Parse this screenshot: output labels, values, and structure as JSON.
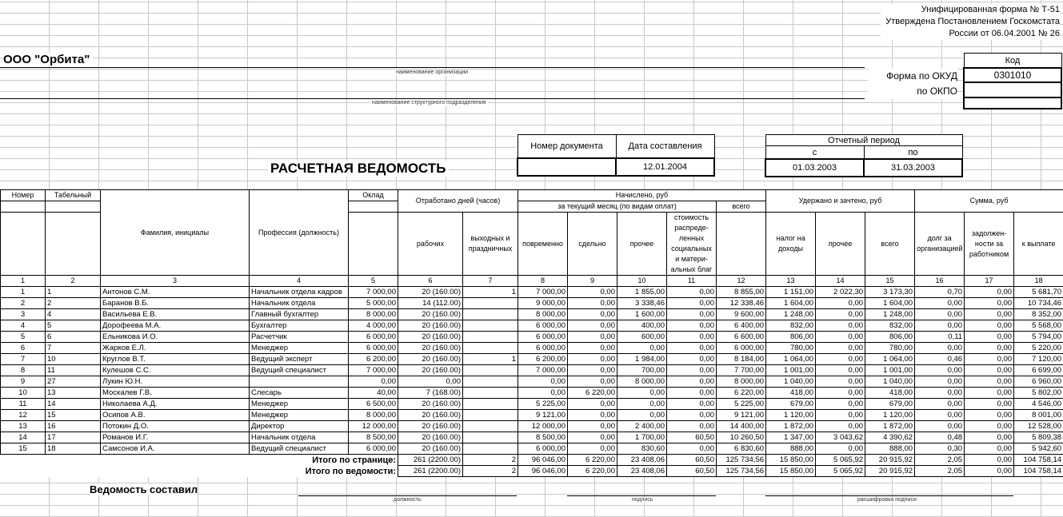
{
  "form_info": [
    "Унифицированная форма № Т-51",
    "Утверждена Постановлением Госкомстата",
    "России от 06.04.2001 № 26"
  ],
  "organization": {
    "name": "ООО \"Орбита\"",
    "name_caption": "наименование организации",
    "division_caption": "наименование структурного подразделения"
  },
  "codes": {
    "header": "Код",
    "okud_label": "Форма по ОКУД",
    "okud_value": "0301010",
    "okpo_label": "по ОКПО",
    "okpo_value": ""
  },
  "document": {
    "title": "РАСЧЕТНАЯ ВЕДОМОСТЬ",
    "number_label": "Номер документа",
    "number_value": "",
    "date_label": "Дата составления",
    "date_value": "12.01.2004",
    "period_label": "Отчетный период",
    "from_label": "с",
    "to_label": "по",
    "from_value": "01.03.2003",
    "to_value": "31.03.2003"
  },
  "table": {
    "headers": {
      "num": "Номер",
      "tab": "Табельный",
      "name": "Фамилия, инициалы",
      "prof": "Профессия (должность)",
      "salary": "Оклад",
      "worked": "Отработано дней (часов)",
      "accrued": "Начислено, руб",
      "current_month": "за текущий месяц (по видам оплат)",
      "accrued_total": "всего",
      "withheld": "Удержано и зачтено, руб",
      "sum": "Сумма, руб",
      "work_days": "рабочих",
      "holidays": "выходных и праздничных",
      "time_based": "повременно",
      "piece": "сдельно",
      "other": "прочее",
      "social": "стоимость распреде-ленных социальных и матери-альных благ",
      "tax": "налог на доходы",
      "w_other": "прочее",
      "w_total": "всего",
      "org_debt": "долг за организацией",
      "emp_debt": "задолжен-ности за работником",
      "to_pay": "к выплате"
    },
    "col_numbers": [
      "1",
      "2",
      "3",
      "4",
      "5",
      "6",
      "7",
      "8",
      "9",
      "10",
      "11",
      "12",
      "13",
      "14",
      "15",
      "16",
      "17",
      "18"
    ],
    "rows": [
      [
        "1",
        "1",
        "Антонов С.М.",
        "Начальник отдела кадров",
        "7 000,00",
        "20 (160.00)",
        "1",
        "7 000,00",
        "0,00",
        "1 855,00",
        "0,00",
        "8 855,00",
        "1 151,00",
        "2 022,30",
        "3 173,30",
        "0,70",
        "0,00",
        "5 681,70"
      ],
      [
        "2",
        "2",
        "Баранов В.Б.",
        "Начальник отдела",
        "5 000,00",
        "14 (112.00)",
        "",
        "9 000,00",
        "0,00",
        "3 338,46",
        "0,00",
        "12 338,46",
        "1 604,00",
        "0,00",
        "1 604,00",
        "0,00",
        "0,00",
        "10 734,46"
      ],
      [
        "3",
        "4",
        "Васильева Е.В.",
        "Главный бухгалтер",
        "8 000,00",
        "20 (160.00)",
        "",
        "8 000,00",
        "0,00",
        "1 600,00",
        "0,00",
        "9 600,00",
        "1 248,00",
        "0,00",
        "1 248,00",
        "0,00",
        "0,00",
        "8 352,00"
      ],
      [
        "4",
        "5",
        "Дорофеева М.А.",
        "Бухгалтер",
        "4 000,00",
        "20 (160.00)",
        "",
        "6 000,00",
        "0,00",
        "400,00",
        "0,00",
        "6 400,00",
        "832,00",
        "0,00",
        "832,00",
        "0,00",
        "0,00",
        "5 568,00"
      ],
      [
        "5",
        "6",
        "Ельникова И.О.",
        "Расчетчик",
        "6 000,00",
        "20 (160.00)",
        "",
        "6 000,00",
        "0,00",
        "600,00",
        "0,00",
        "6 600,00",
        "806,00",
        "0,00",
        "806,00",
        "0,11",
        "0,00",
        "5 794,00"
      ],
      [
        "6",
        "7",
        "Жарков Е.Л.",
        "Менеджер",
        "6 000,00",
        "20 (160.00)",
        "",
        "6 000,00",
        "0,00",
        "0,00",
        "0,00",
        "6 000,00",
        "780,00",
        "0,00",
        "780,00",
        "0,00",
        "0,00",
        "5 220,00"
      ],
      [
        "7",
        "10",
        "Круглов В.Т.",
        "Ведущий эксперт",
        "6 200,00",
        "20 (160.00)",
        "1",
        "6 200,00",
        "0,00",
        "1 984,00",
        "0,00",
        "8 184,00",
        "1 064,00",
        "0,00",
        "1 064,00",
        "0,46",
        "0,00",
        "7 120,00"
      ],
      [
        "8",
        "11",
        "Кулешов С.С.",
        "Ведущий специалист",
        "7 000,00",
        "20 (160.00)",
        "",
        "7 000,00",
        "0,00",
        "700,00",
        "0,00",
        "7 700,00",
        "1 001,00",
        "0,00",
        "1 001,00",
        "0,00",
        "0,00",
        "6 699,00"
      ],
      [
        "9",
        "27",
        "Лукин Ю.Н.",
        "",
        "0,00",
        "0,00",
        "",
        "0,00",
        "0,00",
        "8 000,00",
        "0,00",
        "8 000,00",
        "1 040,00",
        "0,00",
        "1 040,00",
        "0,00",
        "0,00",
        "6 960,00"
      ],
      [
        "10",
        "13",
        "Москалев Г.В.",
        "Слесарь",
        "40,00",
        "7 (168.00)",
        "",
        "0,00",
        "6 220,00",
        "0,00",
        "0,00",
        "6 220,00",
        "418,00",
        "0,00",
        "418,00",
        "0,00",
        "0,00",
        "5 802,00"
      ],
      [
        "11",
        "14",
        "Николаева А.Д.",
        "Менеджер",
        "6 500,00",
        "20 (160.00)",
        "",
        "5 225,00",
        "0,00",
        "0,00",
        "0,00",
        "5 225,00",
        "679,00",
        "0,00",
        "679,00",
        "0,00",
        "0,00",
        "4 546,00"
      ],
      [
        "12",
        "15",
        "Осипов А.В.",
        "Менеджер",
        "8 000,00",
        "20 (160.00)",
        "",
        "9 121,00",
        "0,00",
        "0,00",
        "0,00",
        "9 121,00",
        "1 120,00",
        "0,00",
        "1 120,00",
        "0,00",
        "0,00",
        "8 001,00"
      ],
      [
        "13",
        "16",
        "Потокин Д.О.",
        "Директор",
        "12 000,00",
        "20 (160.00)",
        "",
        "12 000,00",
        "0,00",
        "2 400,00",
        "0,00",
        "14 400,00",
        "1 872,00",
        "0,00",
        "1 872,00",
        "0,00",
        "0,00",
        "12 528,00"
      ],
      [
        "14",
        "17",
        "Романов И.Г.",
        "Начальник отдела",
        "8 500,00",
        "20 (160.00)",
        "",
        "8 500,00",
        "0,00",
        "1 700,00",
        "60,50",
        "10 260,50",
        "1 347,00",
        "3 043,62",
        "4 390,62",
        "0,48",
        "0,00",
        "5 809,38"
      ],
      [
        "15",
        "18",
        "Самсонов И.А.",
        "Ведущий специалист",
        "6 000,00",
        "20 (160.00)",
        "",
        "6 000,00",
        "0,00",
        "830,60",
        "0,00",
        "6 830,60",
        "888,00",
        "0,00",
        "888,00",
        "0,30",
        "0,00",
        "5 942,60"
      ]
    ],
    "totals": [
      {
        "label": "Итого по странице:",
        "values": [
          "261 (2200.00)",
          "2",
          "96 046,00",
          "6 220,00",
          "23 408,06",
          "60,50",
          "125 734,56",
          "15 850,00",
          "5 065,92",
          "20 915,92",
          "2,05",
          "0,00",
          "104 758,14"
        ]
      },
      {
        "label": "Итого по ведомости:",
        "values": [
          "261 (2200.00)",
          "2",
          "96 046,00",
          "6 220,00",
          "23 408,06",
          "60,50",
          "125 734,56",
          "15 850,00",
          "5 065,92",
          "20 915,92",
          "2,05",
          "0,00",
          "104 758,14"
        ]
      }
    ]
  },
  "signature": {
    "label": "Ведомость составил",
    "position_caption": "должность",
    "signature_caption": "подпись",
    "decode_caption": "расшифровка подписи"
  }
}
